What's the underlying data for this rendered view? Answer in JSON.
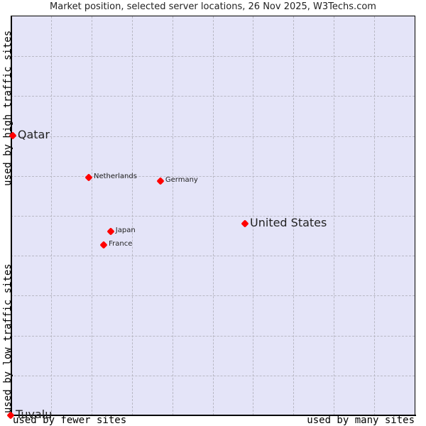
{
  "chart_data": {
    "type": "scatter",
    "title": "Market position, selected server locations, 26 Nov 2025, W3Techs.com",
    "xlabel_low": "used by fewer sites",
    "xlabel_high": "used by many sites",
    "ylabel_low": "used by low traffic sites",
    "ylabel_high": "used by high traffic sites",
    "xlim": [
      0,
      1
    ],
    "ylim": [
      0,
      1
    ],
    "grid": true,
    "grid_divisions": 10,
    "colors": {
      "plot_background": "#E4E4F8",
      "point": "#FF0000",
      "grid": "#B8B8C4"
    },
    "points": [
      {
        "label": "Qatar",
        "x": 0.005,
        "y": 0.7,
        "size": "big"
      },
      {
        "label": "Netherlands",
        "x": 0.193,
        "y": 0.595,
        "size": "small"
      },
      {
        "label": "Germany",
        "x": 0.37,
        "y": 0.586,
        "size": "small"
      },
      {
        "label": "United States",
        "x": 0.579,
        "y": 0.48,
        "size": "big"
      },
      {
        "label": "Japan",
        "x": 0.247,
        "y": 0.46,
        "size": "small"
      },
      {
        "label": "France",
        "x": 0.23,
        "y": 0.426,
        "size": "small"
      },
      {
        "label": "Tuvalu",
        "x": 0.0,
        "y": 0.0,
        "size": "big"
      }
    ]
  }
}
